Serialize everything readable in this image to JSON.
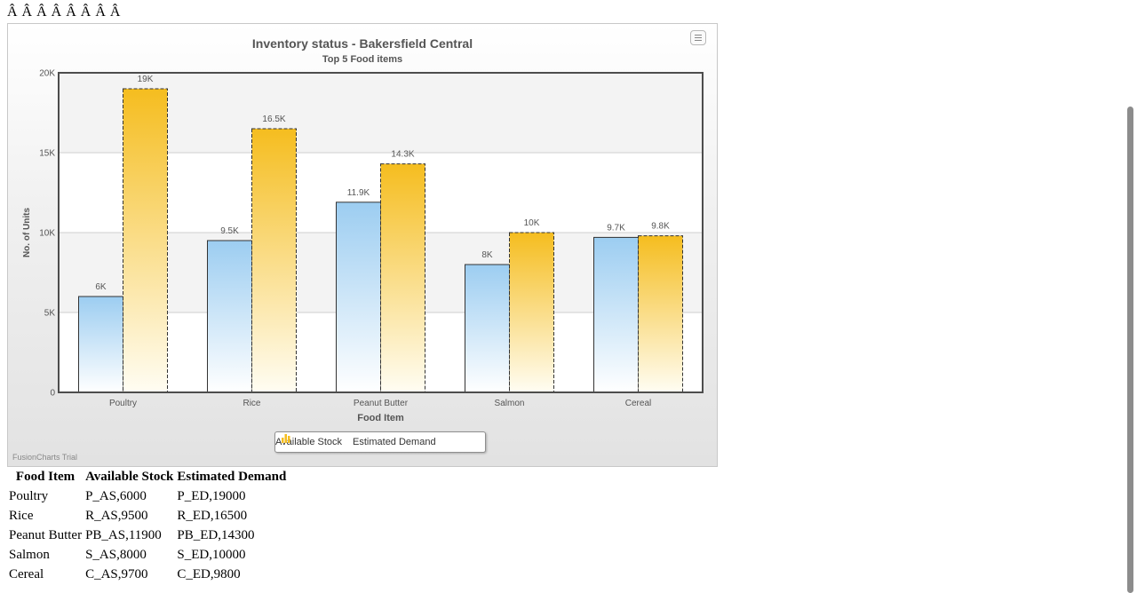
{
  "page": {
    "garbled_text": "Â Â  Â Â  Â Â  Â Â"
  },
  "chart_data": {
    "type": "bar",
    "title": "Inventory status - Bakersfield Central",
    "subtitle": "Top 5 Food items",
    "xlabel": "Food Item",
    "ylabel": "No. of Units",
    "categories": [
      "Poultry",
      "Rice",
      "Peanut Butter",
      "Salmon",
      "Cereal"
    ],
    "ylim": [
      0,
      20000
    ],
    "yticks": [
      0,
      5000,
      10000,
      15000,
      20000
    ],
    "ytick_labels": [
      "0",
      "5K",
      "10K",
      "15K",
      "20K"
    ],
    "grid": true,
    "legend_position": "bottom",
    "series": [
      {
        "name": "Available Stock",
        "values": [
          6000,
          9500,
          11900,
          8000,
          9700
        ],
        "labels": [
          "6K",
          "9.5K",
          "11.9K",
          "8K",
          "9.7K"
        ],
        "color": "#9ccdf1"
      },
      {
        "name": "Estimated Demand",
        "values": [
          19000,
          16500,
          14300,
          10000,
          9800
        ],
        "labels": [
          "19K",
          "16.5K",
          "14.3K",
          "10K",
          "9.8K"
        ],
        "color": "#f5bd1f"
      }
    ]
  },
  "chart_footer": {
    "watermark": "FusionCharts Trial"
  },
  "table": {
    "headers": [
      "Food Item",
      "Available Stock",
      "Estimated Demand"
    ],
    "rows": [
      [
        "Poultry",
        "P_AS,6000",
        "P_ED,19000"
      ],
      [
        "Rice",
        "R_AS,9500",
        "R_ED,16500"
      ],
      [
        "Peanut Butter",
        "PB_AS,11900",
        "PB_ED,14300"
      ],
      [
        "Salmon",
        "S_AS,8000",
        "S_ED,10000"
      ],
      [
        "Cereal",
        "C_AS,9700",
        "C_ED,9800"
      ]
    ]
  },
  "colors": {
    "available_stock": "#9ccdf1",
    "estimated_demand": "#f5bd1f",
    "axis": "#4d4d4d",
    "scrollbar_thumb": "#8c8c8c"
  },
  "icons": {
    "menu": "hamburger-menu-icon",
    "legend_available": "bar-chart-icon-blue",
    "legend_demand": "bar-chart-icon-yellow"
  }
}
